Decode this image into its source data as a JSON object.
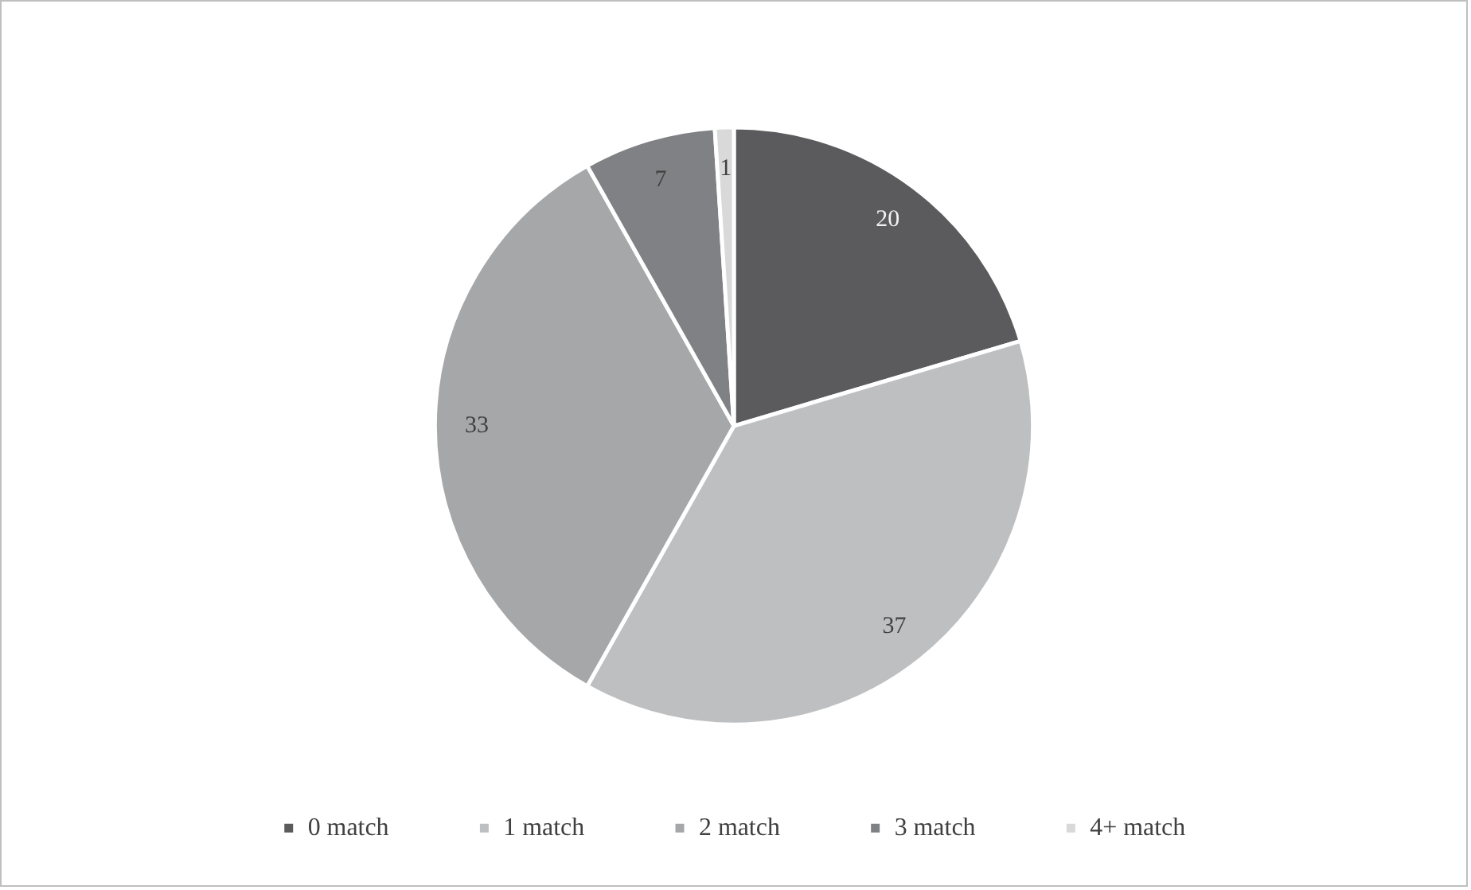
{
  "chart_data": {
    "type": "pie",
    "categories": [
      "0 match",
      "1 match",
      "2 match",
      "3 match",
      "4+ match"
    ],
    "values": [
      20,
      37,
      33,
      7,
      1
    ],
    "colors": [
      "#5b5b5d",
      "#bebfc1",
      "#a6a7a9",
      "#808184",
      "#d9d9d9"
    ],
    "data_labels": true,
    "legend": "bottom"
  }
}
